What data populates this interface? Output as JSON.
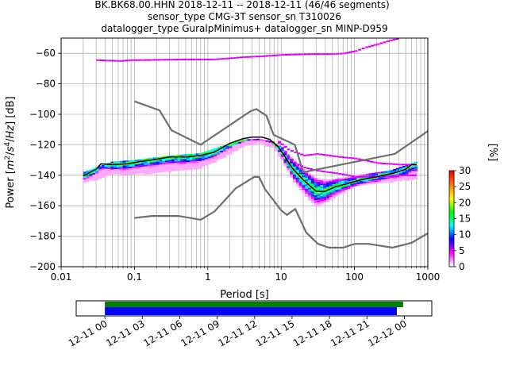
{
  "title": {
    "line1": "BK.BK68.00.HHN   2018-12-11 -- 2018-12-11  (46/46 segments)",
    "line2": "sensor_type CMG-3T sensor_sn T310026",
    "line3": "datalogger_type GuralpMinimus+ datalogger_sn MINP-D959"
  },
  "chart_data": {
    "type": "heatmap",
    "xlabel": "Period [s]",
    "ylabel_parts": [
      "Power [",
      "m",
      "2",
      "/",
      "s",
      "4",
      "/",
      "Hz",
      "] [dB]"
    ],
    "x_scale": "log",
    "xlim": [
      0.01,
      1000
    ],
    "ylim": [
      -200,
      -50
    ],
    "x_ticks": [
      {
        "value": 0.01,
        "label": "0.01"
      },
      {
        "value": 0.1,
        "label": "0.1"
      },
      {
        "value": 1,
        "label": "1"
      },
      {
        "value": 10,
        "label": "10"
      },
      {
        "value": 100,
        "label": "100"
      },
      {
        "value": 1000,
        "label": "1000"
      }
    ],
    "y_ticks": [
      {
        "value": -60,
        "label": "−60"
      },
      {
        "value": -80,
        "label": "−80"
      },
      {
        "value": -100,
        "label": "−100"
      },
      {
        "value": -120,
        "label": "−120"
      },
      {
        "value": -140,
        "label": "−140"
      },
      {
        "value": -160,
        "label": "−160"
      },
      {
        "value": -180,
        "label": "−180"
      },
      {
        "value": -200,
        "label": "−200"
      }
    ],
    "grid": true,
    "colorbar": {
      "label": "[%]",
      "range": [
        0,
        30
      ],
      "ticks": [
        {
          "value": 0,
          "label": "0"
        },
        {
          "value": 5,
          "label": "5"
        },
        {
          "value": 10,
          "label": "10"
        },
        {
          "value": 15,
          "label": "15"
        },
        {
          "value": 20,
          "label": "20"
        },
        {
          "value": 25,
          "label": "25"
        },
        {
          "value": 30,
          "label": "30"
        }
      ],
      "colors": [
        "#ffffff",
        "#ff00ff",
        "#0000ff",
        "#00ffff",
        "#00ff00",
        "#ffff00",
        "#ff8000",
        "#ff0000"
      ]
    },
    "noise_models": {
      "high": [
        [
          0.1,
          -91.5
        ],
        [
          0.22,
          -97.4
        ],
        [
          0.32,
          -110.5
        ],
        [
          0.8,
          -120
        ],
        [
          3.8,
          -98
        ],
        [
          4.6,
          -96.5
        ],
        [
          6.3,
          -101
        ],
        [
          7.9,
          -113.5
        ],
        [
          15.4,
          -120
        ],
        [
          20,
          -138
        ],
        [
          354.8,
          -126
        ],
        [
          1000,
          -111
        ]
      ],
      "low": [
        [
          0.1,
          -168
        ],
        [
          0.17,
          -166.7
        ],
        [
          0.4,
          -166.7
        ],
        [
          0.8,
          -169.2
        ],
        [
          1.24,
          -163.7
        ],
        [
          2.4,
          -148.6
        ],
        [
          4.3,
          -141.1
        ],
        [
          5,
          -141.1
        ],
        [
          6,
          -149
        ],
        [
          10,
          -163
        ],
        [
          12,
          -166
        ],
        [
          15.6,
          -162.1
        ],
        [
          21.9,
          -177.5
        ],
        [
          31.6,
          -185
        ],
        [
          45,
          -187.5
        ],
        [
          70,
          -187.5
        ],
        [
          101,
          -185
        ],
        [
          154,
          -185
        ],
        [
          328,
          -187.5
        ],
        [
          600,
          -184.4
        ],
        [
          1000,
          -178
        ]
      ]
    },
    "median": [
      [
        0.02,
        -140.5
      ],
      [
        0.025,
        -138
      ],
      [
        0.03,
        -136
      ],
      [
        0.035,
        -132.5
      ],
      [
        0.05,
        -133
      ],
      [
        0.08,
        -132.5
      ],
      [
        0.12,
        -131
      ],
      [
        0.2,
        -129.5
      ],
      [
        0.3,
        -128
      ],
      [
        0.5,
        -128
      ],
      [
        0.8,
        -127
      ],
      [
        1.2,
        -125
      ],
      [
        2,
        -119
      ],
      [
        3,
        -116
      ],
      [
        4,
        -115
      ],
      [
        5.5,
        -115
      ],
      [
        7,
        -116.5
      ],
      [
        9,
        -121
      ],
      [
        11,
        -127
      ],
      [
        14,
        -135
      ],
      [
        20,
        -143
      ],
      [
        30,
        -150.5
      ],
      [
        40,
        -150.5
      ],
      [
        55,
        -147.5
      ],
      [
        80,
        -145.5
      ],
      [
        120,
        -143
      ],
      [
        200,
        -141
      ],
      [
        350,
        -138.5
      ],
      [
        500,
        -136
      ],
      [
        600,
        -133
      ],
      [
        700,
        -133
      ]
    ],
    "band_upper": [
      [
        0.02,
        -138
      ],
      [
        0.05,
        -131
      ],
      [
        0.1,
        -130
      ],
      [
        0.3,
        -127
      ],
      [
        0.8,
        -125.5
      ],
      [
        1.5,
        -121
      ],
      [
        3,
        -116.5
      ],
      [
        5,
        -116
      ],
      [
        8,
        -118
      ],
      [
        11,
        -123
      ],
      [
        15,
        -130
      ],
      [
        20,
        -136
      ],
      [
        30,
        -142
      ],
      [
        50,
        -143
      ],
      [
        100,
        -140
      ],
      [
        300,
        -137
      ],
      [
        700,
        -131
      ]
    ],
    "band_lower": [
      [
        0.02,
        -145
      ],
      [
        0.05,
        -139
      ],
      [
        0.1,
        -139
      ],
      [
        0.3,
        -137.5
      ],
      [
        0.8,
        -135
      ],
      [
        1.5,
        -129
      ],
      [
        3,
        -121
      ],
      [
        5,
        -118.5
      ],
      [
        8,
        -122
      ],
      [
        11,
        -132
      ],
      [
        15,
        -144
      ],
      [
        20,
        -151
      ],
      [
        30,
        -160.5
      ],
      [
        50,
        -155
      ],
      [
        100,
        -147
      ],
      [
        300,
        -144
      ],
      [
        700,
        -142
      ]
    ],
    "outlier_bands": {
      "top": [
        [
          0.03,
          -64.5
        ],
        [
          0.06,
          -65
        ],
        [
          0.09,
          -64.5
        ],
        [
          0.5,
          -64
        ],
        [
          0.8,
          -64
        ],
        [
          1.2,
          -64
        ],
        [
          3,
          -62.5
        ],
        [
          5,
          -62
        ],
        [
          10,
          -61
        ],
        [
          25,
          -60.5
        ],
        [
          50,
          -60.5
        ],
        [
          70,
          -60
        ],
        [
          100,
          -58.5
        ],
        [
          140,
          -56
        ],
        [
          200,
          -54
        ],
        [
          300,
          -51.5
        ],
        [
          400,
          -50
        ]
      ],
      "spread_upper": [
        [
          9,
          -118
        ],
        [
          12,
          -123
        ],
        [
          15,
          -125
        ],
        [
          20,
          -127
        ],
        [
          30,
          -126
        ],
        [
          60,
          -128
        ],
        [
          100,
          -129
        ],
        [
          200,
          -132
        ],
        [
          400,
          -133
        ],
        [
          700,
          -133
        ]
      ],
      "spread_lower": [
        [
          9,
          -119
        ],
        [
          12,
          -128
        ],
        [
          15,
          -132
        ],
        [
          20,
          -135
        ],
        [
          30,
          -137
        ],
        [
          60,
          -139
        ],
        [
          100,
          -141
        ],
        [
          200,
          -141
        ],
        [
          400,
          -140
        ],
        [
          700,
          -140
        ]
      ]
    },
    "time_axis": {
      "tick_labels": [
        "12-11 00",
        "12-11 03",
        "12-11 06",
        "12-11 09",
        "12-11 12",
        "12-11 15",
        "12-11 18",
        "12-11 21",
        "12-12 00"
      ],
      "range_hours": [
        -2.3,
        26.2
      ],
      "green_bar_hours": [
        0,
        23.9
      ],
      "blue_bar_hours": [
        0,
        23.4
      ],
      "green_color": "#008000",
      "blue_color": "#0000ff"
    }
  }
}
